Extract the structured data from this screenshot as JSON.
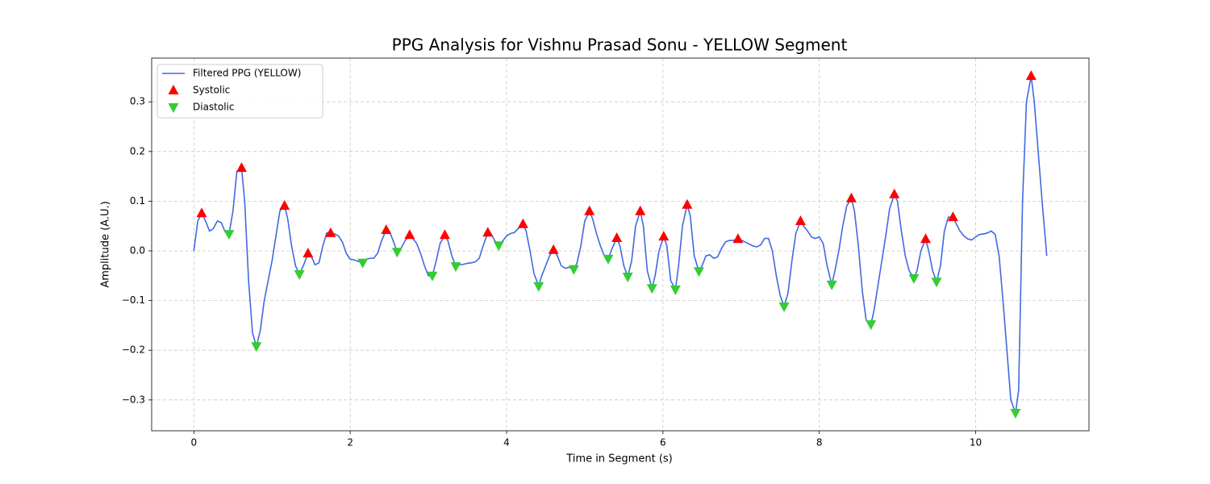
{
  "chart_data": {
    "type": "line",
    "title": "PPG Analysis for Vishnu Prasad Sonu - YELLOW Segment",
    "x_label": "Time in Segment (s)",
    "y_label": "Amplitude (A.U.)",
    "xlim": [
      -0.54,
      11.45
    ],
    "ylim": [
      -0.362,
      0.388
    ],
    "xticks": [
      0,
      2,
      4,
      6,
      8,
      10
    ],
    "yticks": [
      {
        "value": -0.3,
        "label": "−0.3"
      },
      {
        "value": -0.2,
        "label": "−0.2"
      },
      {
        "value": -0.1,
        "label": "−0.1"
      },
      {
        "value": 0,
        "label": "0.0"
      },
      0.1,
      0.2,
      0.3
    ],
    "grid": true,
    "legend": "upper left",
    "x": [
      0,
      0.05,
      0.1,
      0.15,
      0.2,
      0.25,
      0.3,
      0.35,
      0.4,
      0.45,
      0.5,
      0.55,
      0.61,
      0.65,
      0.7,
      0.75,
      0.8,
      0.85,
      0.9,
      0.95,
      1.0,
      1.05,
      1.1,
      1.16,
      1.2,
      1.25,
      1.3,
      1.35,
      1.4,
      1.46,
      1.5,
      1.55,
      1.6,
      1.65,
      1.7,
      1.75,
      1.8,
      1.85,
      1.9,
      1.95,
      2.0,
      2.05,
      2.1,
      2.16,
      2.2,
      2.25,
      2.3,
      2.35,
      2.4,
      2.46,
      2.5,
      2.55,
      2.6,
      2.65,
      2.7,
      2.76,
      2.8,
      2.85,
      2.9,
      2.95,
      3.0,
      3.05,
      3.1,
      3.15,
      3.21,
      3.25,
      3.3,
      3.35,
      3.4,
      3.45,
      3.5,
      3.55,
      3.6,
      3.65,
      3.7,
      3.76,
      3.8,
      3.85,
      3.9,
      3.95,
      4.0,
      4.05,
      4.1,
      4.15,
      4.21,
      4.25,
      4.3,
      4.35,
      4.41,
      4.45,
      4.5,
      4.55,
      4.6,
      4.65,
      4.7,
      4.75,
      4.8,
      4.86,
      4.9,
      4.95,
      5.0,
      5.06,
      5.1,
      5.15,
      5.2,
      5.25,
      5.3,
      5.35,
      5.41,
      5.45,
      5.5,
      5.55,
      5.6,
      5.65,
      5.71,
      5.75,
      5.8,
      5.86,
      5.9,
      5.95,
      6.01,
      6.05,
      6.1,
      6.16,
      6.2,
      6.25,
      6.31,
      6.35,
      6.4,
      6.46,
      6.5,
      6.55,
      6.6,
      6.65,
      6.7,
      6.75,
      6.8,
      6.85,
      6.9,
      6.96,
      7.0,
      7.05,
      7.1,
      7.15,
      7.2,
      7.25,
      7.3,
      7.35,
      7.4,
      7.45,
      7.5,
      7.55,
      7.6,
      7.65,
      7.7,
      7.76,
      7.8,
      7.85,
      7.9,
      7.95,
      8.0,
      8.05,
      8.1,
      8.16,
      8.2,
      8.25,
      8.3,
      8.35,
      8.41,
      8.45,
      8.5,
      8.55,
      8.6,
      8.66,
      8.7,
      8.75,
      8.8,
      8.85,
      8.9,
      8.96,
      9.0,
      9.05,
      9.1,
      9.15,
      9.21,
      9.25,
      9.3,
      9.36,
      9.4,
      9.45,
      9.5,
      9.55,
      9.6,
      9.65,
      9.71,
      9.75,
      9.8,
      9.85,
      9.9,
      9.95,
      10.0,
      10.05,
      10.1,
      10.15,
      10.2,
      10.25,
      10.3,
      10.35,
      10.4,
      10.45,
      10.51,
      10.55,
      10.6,
      10.65,
      10.71,
      10.75,
      10.8,
      10.85,
      10.91
    ],
    "series": [
      {
        "name": "Filtered PPG (YELLOW)",
        "color": "#4169e1",
        "values": [
          0,
          0.06,
          0.076,
          0.06,
          0.04,
          0.045,
          0.06,
          0.057,
          0.038,
          0.034,
          0.08,
          0.16,
          0.167,
          0.1,
          -0.06,
          -0.165,
          -0.192,
          -0.16,
          -0.1,
          -0.06,
          -0.02,
          0.03,
          0.08,
          0.091,
          0.065,
          0.01,
          -0.03,
          -0.047,
          -0.03,
          -0.005,
          -0.01,
          -0.028,
          -0.024,
          0.01,
          0.036,
          0.036,
          0.034,
          0.03,
          0.018,
          -0.005,
          -0.017,
          -0.018,
          -0.021,
          -0.024,
          -0.017,
          -0.015,
          -0.015,
          -0.005,
          0.02,
          0.042,
          0.04,
          0.02,
          -0.002,
          0.005,
          0.02,
          0.032,
          0.025,
          0.015,
          -0.005,
          -0.03,
          -0.05,
          -0.05,
          -0.02,
          0.015,
          0.032,
          0.02,
          -0.01,
          -0.031,
          -0.028,
          -0.027,
          -0.025,
          -0.024,
          -0.022,
          -0.015,
          0.01,
          0.037,
          0.035,
          0.02,
          0.011,
          0.02,
          0.03,
          0.035,
          0.037,
          0.045,
          0.054,
          0.04,
          0,
          -0.045,
          -0.071,
          -0.05,
          -0.03,
          -0.01,
          0.002,
          -0.01,
          -0.03,
          -0.035,
          -0.033,
          -0.037,
          -0.025,
          0.01,
          0.06,
          0.08,
          0.065,
          0.035,
          0.01,
          -0.01,
          -0.016,
          0.005,
          0.026,
          0.01,
          -0.03,
          -0.052,
          -0.02,
          0.05,
          0.08,
          0.05,
          -0.04,
          -0.075,
          -0.05,
          0,
          0.029,
          0.01,
          -0.06,
          -0.078,
          -0.03,
          0.05,
          0.093,
          0.07,
          -0.01,
          -0.041,
          -0.03,
          -0.01,
          -0.008,
          -0.015,
          -0.012,
          0.005,
          0.018,
          0.021,
          0.021,
          0.024,
          0.022,
          0.018,
          0.014,
          0.01,
          0.008,
          0.012,
          0.025,
          0.025,
          0,
          -0.05,
          -0.09,
          -0.112,
          -0.085,
          -0.02,
          0.035,
          0.06,
          0.05,
          0.04,
          0.028,
          0.025,
          0.028,
          0.015,
          -0.03,
          -0.068,
          -0.04,
          0,
          0.05,
          0.09,
          0.106,
          0.08,
          0.01,
          -0.08,
          -0.14,
          -0.148,
          -0.12,
          -0.07,
          -0.02,
          0.03,
          0.085,
          0.114,
          0.1,
          0.04,
          -0.01,
          -0.04,
          -0.055,
          -0.04,
          0,
          0.024,
          0,
          -0.04,
          -0.062,
          -0.03,
          0.04,
          0.068,
          0.068,
          0.055,
          0.04,
          0.03,
          0.024,
          0.022,
          0.028,
          0.033,
          0.034,
          0.036,
          0.04,
          0.033,
          -0.01,
          -0.1,
          -0.2,
          -0.3,
          -0.326,
          -0.28,
          0.1,
          0.3,
          0.352,
          0.3,
          0.2,
          0.1,
          -0.01
        ]
      },
      {
        "name": "Systolic",
        "color": "#ff0000",
        "marker": "^",
        "x": [
          0.1,
          0.61,
          1.16,
          1.46,
          1.75,
          2.46,
          2.76,
          3.21,
          3.76,
          4.21,
          4.6,
          5.06,
          5.41,
          5.71,
          6.01,
          6.31,
          6.96,
          7.76,
          8.41,
          8.96,
          9.36,
          9.71,
          10.71
        ],
        "values": [
          0.076,
          0.167,
          0.091,
          -0.005,
          0.036,
          0.042,
          0.032,
          0.032,
          0.037,
          0.054,
          0.002,
          0.08,
          0.026,
          0.08,
          0.029,
          0.093,
          0.024,
          0.06,
          0.106,
          0.114,
          0.024,
          0.068,
          0.352
        ]
      },
      {
        "name": "Diastolic",
        "color": "#32cd32",
        "marker": "v",
        "x": [
          0.45,
          0.8,
          1.35,
          2.16,
          2.6,
          3.05,
          3.35,
          3.9,
          4.41,
          4.86,
          5.3,
          5.55,
          5.86,
          6.16,
          6.46,
          7.55,
          8.16,
          8.66,
          9.21,
          9.5,
          10.51
        ],
        "values": [
          0.034,
          -0.192,
          -0.047,
          -0.024,
          -0.002,
          -0.05,
          -0.031,
          0.011,
          -0.071,
          -0.037,
          -0.016,
          -0.052,
          -0.075,
          -0.078,
          -0.041,
          -0.112,
          -0.068,
          -0.148,
          -0.055,
          -0.062,
          -0.326
        ]
      }
    ]
  }
}
